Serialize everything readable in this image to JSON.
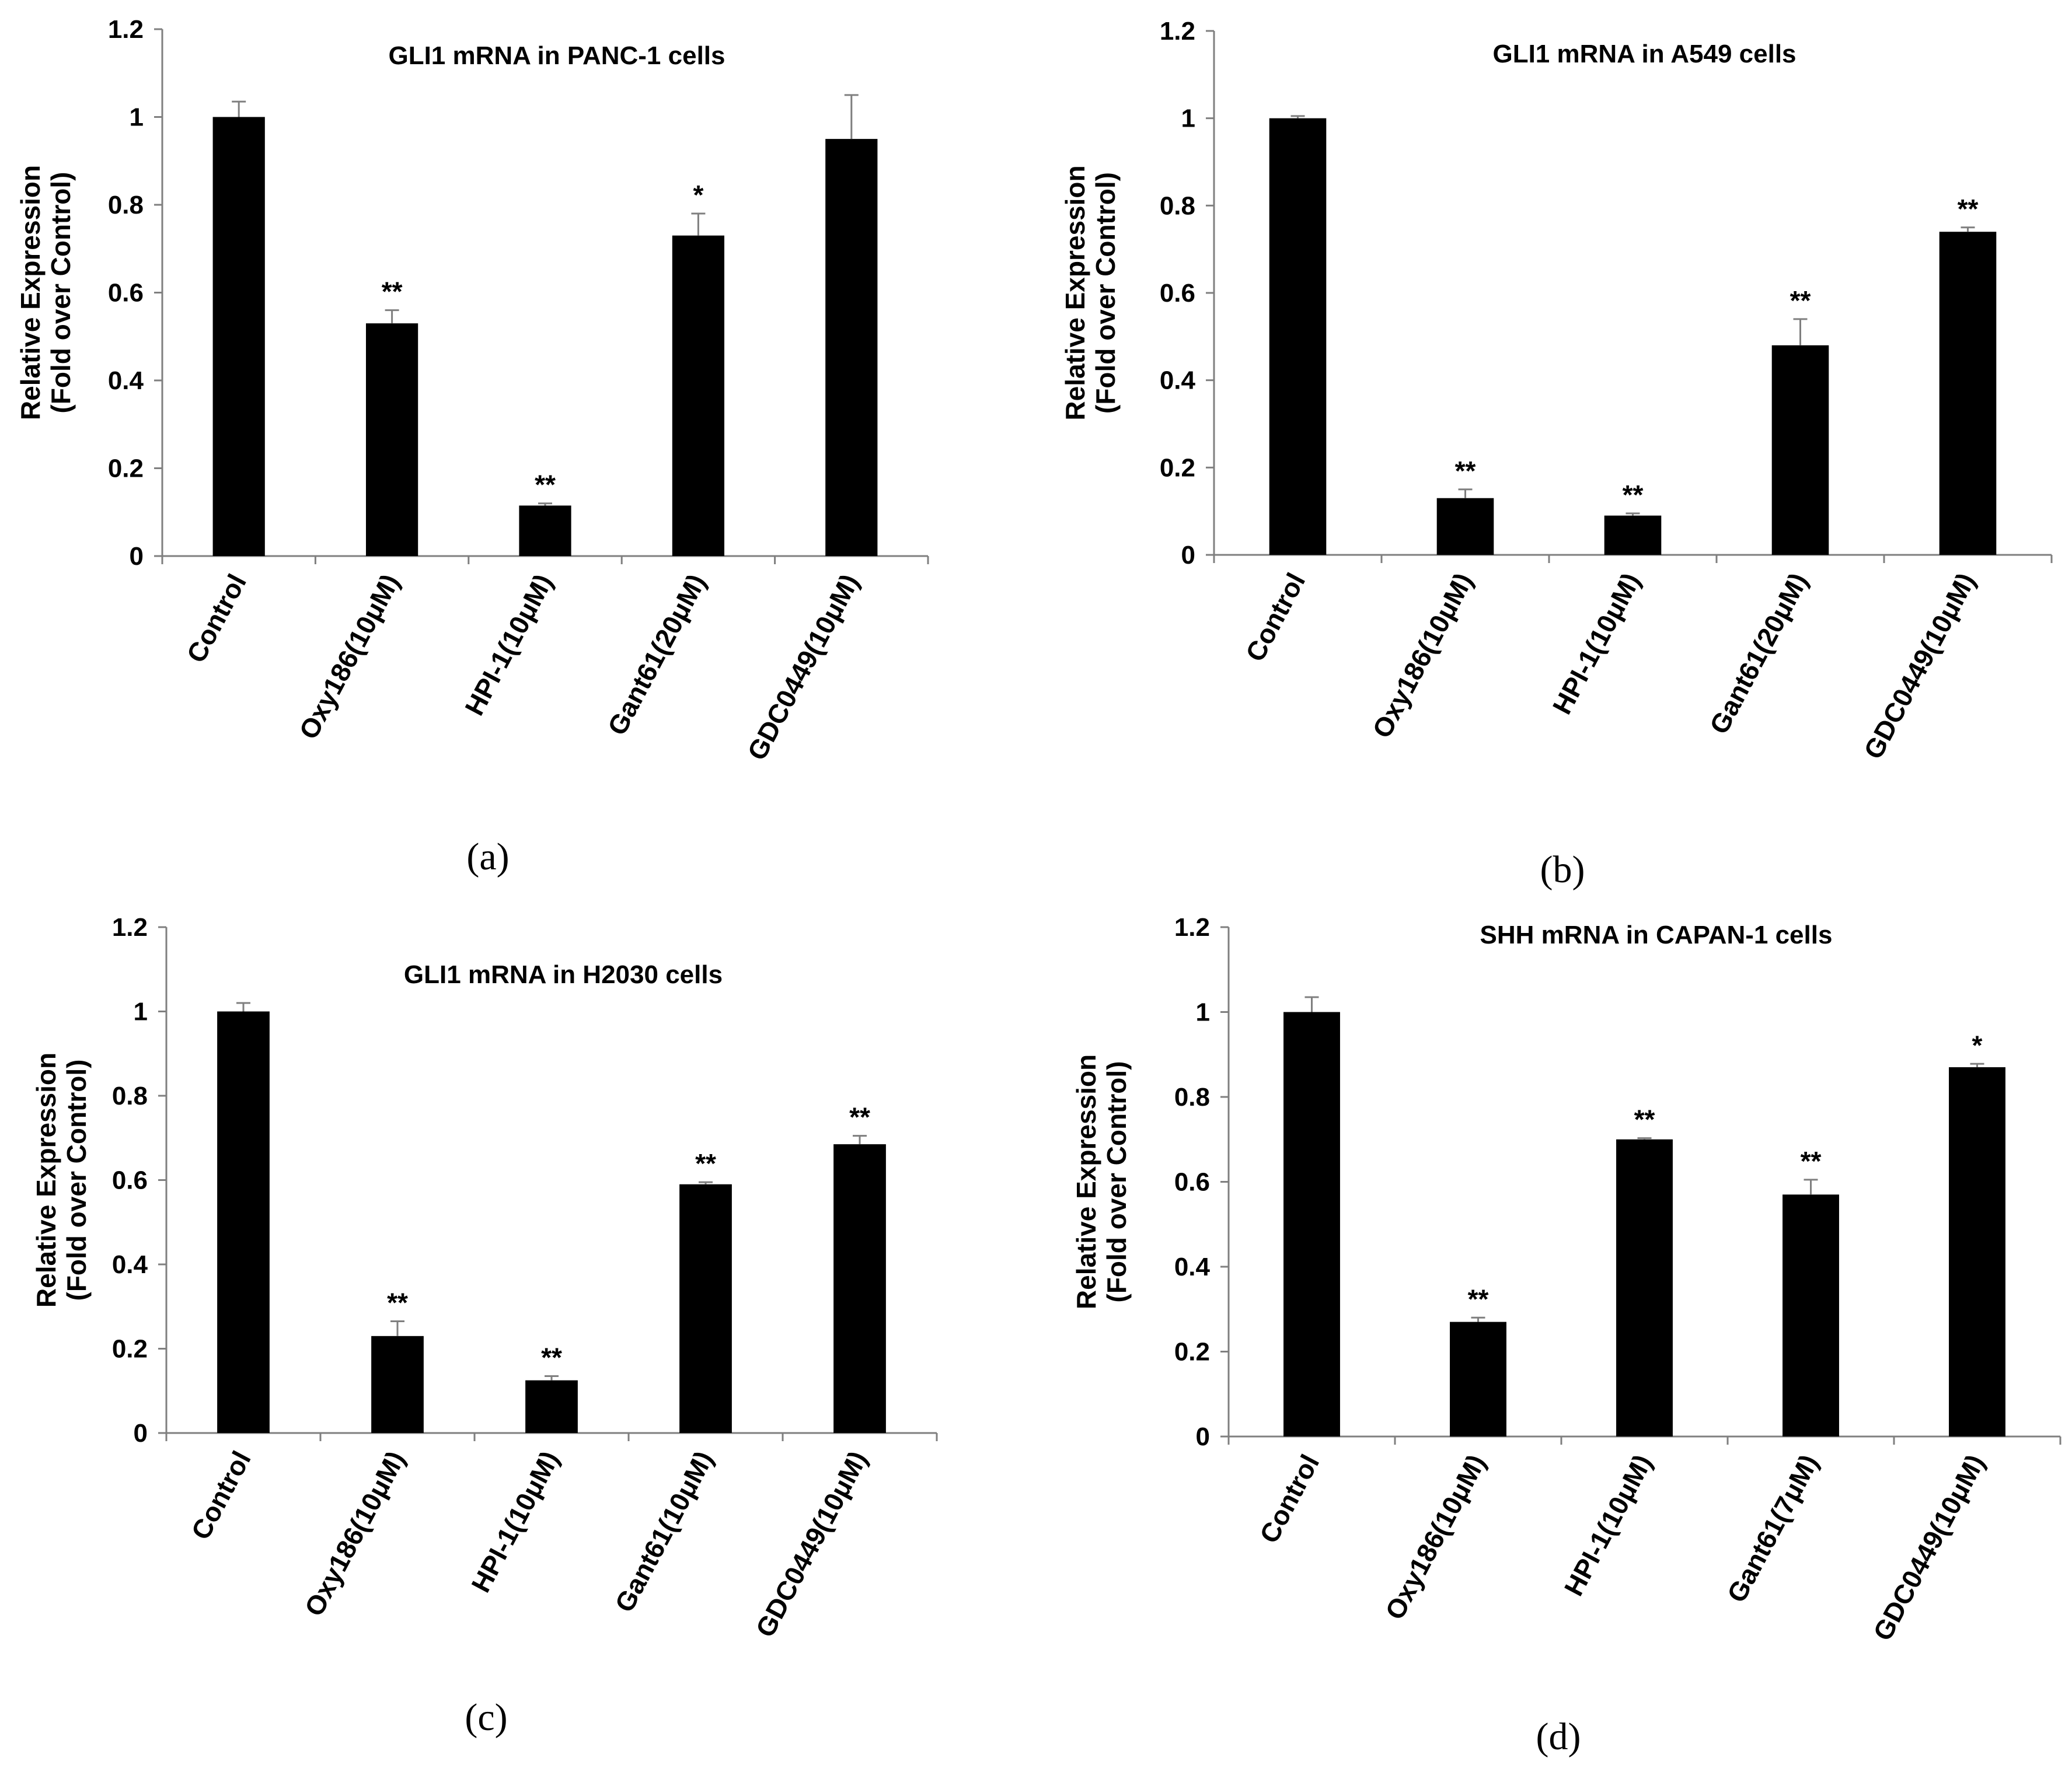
{
  "chart_data": [
    {
      "type": "bar",
      "panel": "(a)",
      "title": "GLI1 mRNA in PANC-1 cells",
      "ylabel": [
        "Relative Expression",
        "(Fold over Control)"
      ],
      "xlabel": "",
      "ylim": [
        0,
        1.2
      ],
      "yticks": [
        "0",
        "0.2",
        "0.4",
        "0.6",
        "0.8",
        "1",
        "1.2"
      ],
      "categories": [
        "Control",
        "Oxy186(10μM)",
        "HPI-1(10μM)",
        "Gant61(20μM)",
        "GDC0449(10μM)"
      ],
      "values": [
        1.0,
        0.53,
        0.115,
        0.73,
        0.95
      ],
      "errors": [
        0.035,
        0.03,
        0.005,
        0.05,
        0.1
      ],
      "significance": [
        "",
        "**",
        "**",
        "*",
        ""
      ]
    },
    {
      "type": "bar",
      "panel": "(b)",
      "title": "GLI1 mRNA in A549 cells",
      "ylabel": [
        "Relative Expression",
        "(Fold over Control)"
      ],
      "xlabel": "",
      "ylim": [
        0,
        1.2
      ],
      "yticks": [
        "0",
        "0.2",
        "0.4",
        "0.6",
        "0.8",
        "1",
        "1.2"
      ],
      "categories": [
        "Control",
        "Oxy186(10μM)",
        "HPI-1(10μM)",
        "Gant61(20μM)",
        "GDC0449(10μM)"
      ],
      "values": [
        1.0,
        0.13,
        0.09,
        0.48,
        0.74
      ],
      "errors": [
        0.005,
        0.02,
        0.005,
        0.06,
        0.01
      ],
      "significance": [
        "",
        "**",
        "**",
        "**",
        "**"
      ]
    },
    {
      "type": "bar",
      "panel": "(c)",
      "title": "GLI1 mRNA in H2030 cells",
      "ylabel": [
        "Relative Expression",
        "(Fold over Control)"
      ],
      "xlabel": "",
      "ylim": [
        0,
        1.2
      ],
      "yticks": [
        "0",
        "0.2",
        "0.4",
        "0.6",
        "0.8",
        "1",
        "1.2"
      ],
      "categories": [
        "Control",
        "Oxy186(10μM)",
        "HPI-1(10μM)",
        "Gant61(10μM)",
        "GDC0449(10μM)"
      ],
      "values": [
        1.0,
        0.23,
        0.125,
        0.59,
        0.685
      ],
      "errors": [
        0.02,
        0.035,
        0.01,
        0.005,
        0.02
      ],
      "significance": [
        "",
        "**",
        "**",
        "**",
        "**"
      ]
    },
    {
      "type": "bar",
      "panel": "(d)",
      "title": "SHH mRNA in CAPAN-1 cells",
      "ylabel": [
        "Relative Expression",
        "(Fold over Control)"
      ],
      "xlabel": "",
      "ylim": [
        0,
        1.2
      ],
      "yticks": [
        "0",
        "0.2",
        "0.4",
        "0.6",
        "0.8",
        "1",
        "1.2"
      ],
      "categories": [
        "Control",
        "Oxy186(10μM)",
        "HPI-1(10μM)",
        "Gant61(7μM)",
        "GDC0449(10μM)"
      ],
      "values": [
        1.0,
        0.27,
        0.7,
        0.57,
        0.87
      ],
      "errors": [
        0.035,
        0.01,
        0.003,
        0.035,
        0.008
      ],
      "significance": [
        "",
        "**",
        "**",
        "**",
        "*"
      ]
    }
  ]
}
